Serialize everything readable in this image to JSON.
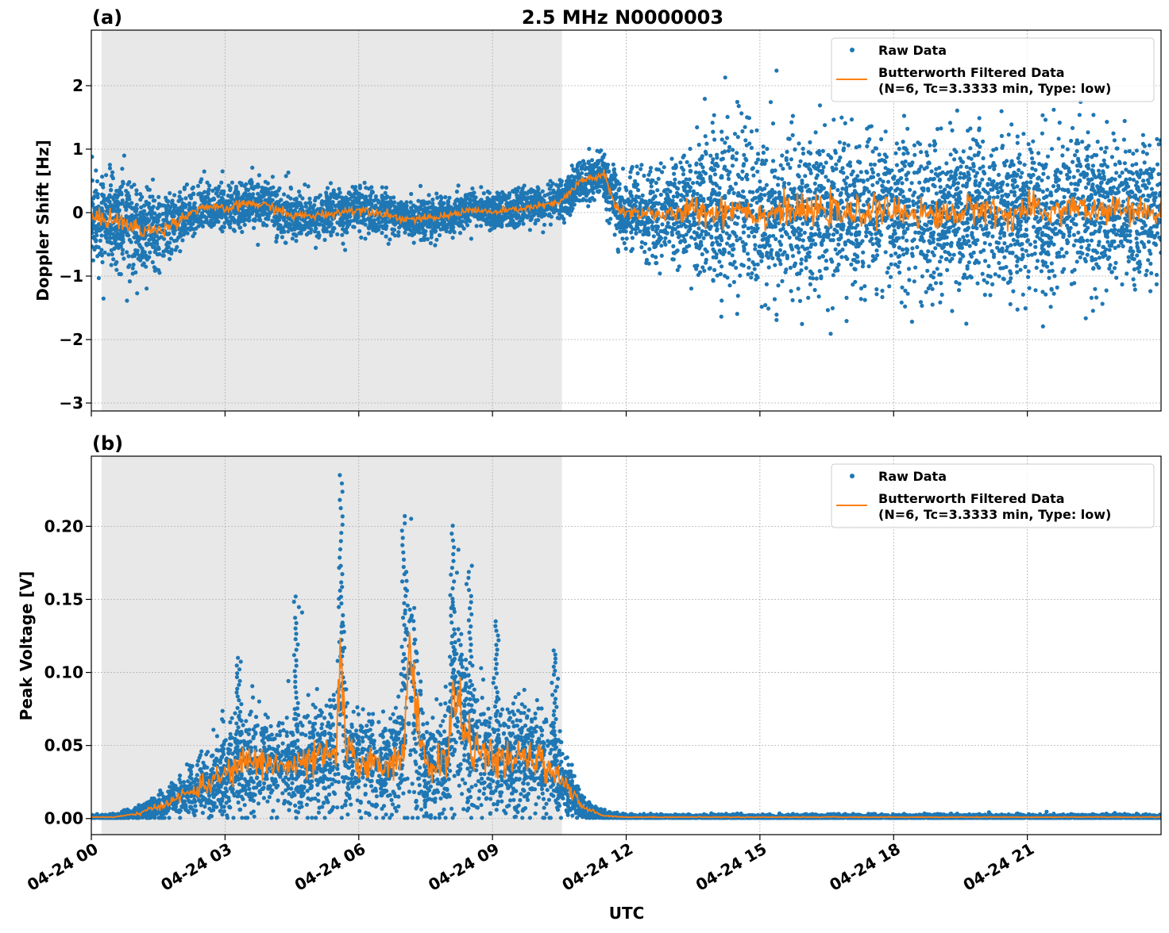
{
  "title": "2.5 MHz N0000003",
  "xlabel": "UTC",
  "x_tick_labels": [
    "04-24 00",
    "04-24 03",
    "04-24 06",
    "04-24 09",
    "04-24 12",
    "04-24 15",
    "04-24 18",
    "04-24 21"
  ],
  "x_ticks_hours": [
    0,
    3,
    6,
    9,
    12,
    15,
    18,
    21
  ],
  "xlim_hours": [
    0,
    24
  ],
  "shaded_interval_hours": [
    0.23,
    10.56
  ],
  "colors": {
    "raw": "#1f77b4",
    "filtered": "#ff7f0e",
    "shade": "#e8e8e8",
    "grid": "#b0b0b0"
  },
  "legend": {
    "raw": "Raw Data",
    "filtered_line1": "Butterworth Filtered Data",
    "filtered_line2": "(N=6, Tc=3.3333 min, Type: low)",
    "placement": "top-right"
  },
  "chart_data": [
    {
      "type": "scatter+line",
      "panel_label": "(a)",
      "ylabel": "Doppler Shift [Hz]",
      "ylim": [
        -3.125,
        2.875
      ],
      "y_ticks": [
        2,
        1,
        0,
        -1,
        -2,
        -3
      ],
      "y_tick_labels": [
        "2",
        "1",
        "0",
        "−1",
        "−2",
        "−3"
      ],
      "grid": true,
      "filtered_x_hours": [
        0,
        0.5,
        1,
        1.5,
        2,
        2.5,
        3,
        3.5,
        4,
        4.5,
        5,
        5.5,
        6,
        6.5,
        7,
        7.5,
        8,
        8.5,
        9,
        9.5,
        10,
        10.5,
        11,
        11.5,
        11.75,
        12,
        12.5,
        13,
        13.5,
        14,
        14.5,
        15,
        15.5,
        16,
        16.5,
        17,
        17.5,
        18,
        18.5,
        19,
        19.5,
        20,
        20.5,
        21,
        21.5,
        22,
        22.5,
        23,
        23.5,
        24
      ],
      "filtered_y": [
        -0.1,
        -0.1,
        -0.25,
        -0.3,
        -0.1,
        0.1,
        0.05,
        0.15,
        0.1,
        -0.05,
        -0.05,
        0.0,
        0.05,
        0.0,
        -0.1,
        -0.1,
        -0.05,
        0.05,
        0.0,
        0.05,
        0.1,
        0.15,
        0.5,
        0.6,
        0.1,
        0.0,
        0.0,
        -0.05,
        0.05,
        0.0,
        0.1,
        -0.05,
        0.05,
        0.0,
        0.05,
        -0.05,
        0.05,
        0.0,
        0.0,
        -0.05,
        0.0,
        0.1,
        -0.05,
        0.05,
        0.0,
        0.1,
        0.0,
        0.05,
        0.0,
        0.0
      ],
      "raw_spread": [
        0.8,
        0.8,
        0.8,
        0.8,
        0.45,
        0.4,
        0.4,
        0.45,
        0.45,
        0.4,
        0.4,
        0.4,
        0.4,
        0.4,
        0.35,
        0.35,
        0.3,
        0.3,
        0.3,
        0.3,
        0.3,
        0.35,
        0.4,
        0.4,
        0.6,
        0.6,
        0.7,
        0.8,
        1.2,
        1.3,
        1.3,
        1.3,
        1.3,
        1.3,
        1.3,
        1.3,
        1.3,
        1.3,
        1.3,
        1.3,
        1.3,
        1.3,
        1.3,
        1.3,
        1.3,
        1.3,
        1.3,
        1.2,
        1.2,
        1.2
      ]
    },
    {
      "type": "scatter+line",
      "panel_label": "(b)",
      "ylabel": "Peak Voltage [V]",
      "ylim": [
        -0.011,
        0.248
      ],
      "y_ticks": [
        0.2,
        0.15,
        0.1,
        0.05,
        0.0
      ],
      "y_tick_labels": [
        "0.20",
        "0.15",
        "0.10",
        "0.05",
        "0.00"
      ],
      "grid": true,
      "filtered_x_hours": [
        0,
        0.5,
        1,
        1.5,
        2,
        2.5,
        3,
        3.5,
        4,
        4.5,
        5,
        5.5,
        5.6,
        5.7,
        6,
        6.5,
        7,
        7.1,
        7.5,
        8,
        8.1,
        8.5,
        9,
        9.5,
        10,
        10.5,
        11,
        11.5,
        12,
        24
      ],
      "filtered_y": [
        0.001,
        0.001,
        0.003,
        0.008,
        0.015,
        0.022,
        0.03,
        0.04,
        0.038,
        0.035,
        0.04,
        0.045,
        0.12,
        0.045,
        0.04,
        0.035,
        0.045,
        0.11,
        0.035,
        0.04,
        0.088,
        0.05,
        0.04,
        0.04,
        0.04,
        0.03,
        0.008,
        0.002,
        0.001,
        0.001
      ],
      "raw_peaks": [
        {
          "x": 5.6,
          "y": 0.235
        },
        {
          "x": 7.0,
          "y": 0.207
        },
        {
          "x": 8.1,
          "y": 0.195
        },
        {
          "x": 4.6,
          "y": 0.152
        },
        {
          "x": 9.1,
          "y": 0.135
        },
        {
          "x": 3.3,
          "y": 0.11
        },
        {
          "x": 10.4,
          "y": 0.115
        },
        {
          "x": 8.5,
          "y": 0.173
        }
      ]
    }
  ]
}
